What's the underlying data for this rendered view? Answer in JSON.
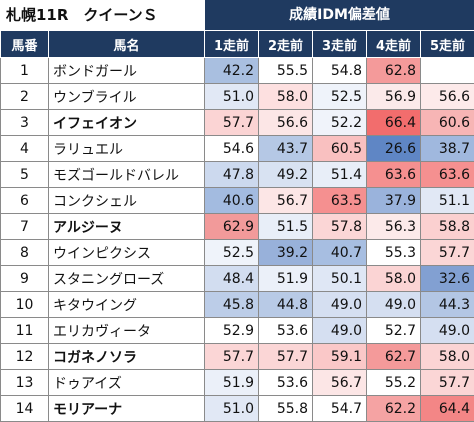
{
  "title": "札幌11R　クイーンＳ",
  "group_header": "成績IDM偏差値",
  "columns": [
    "馬番",
    "馬名",
    "1走前",
    "2走前",
    "3走前",
    "4走前",
    "5走前"
  ],
  "rows": [
    {
      "no": "1",
      "name": "ボンドガール",
      "bold": false,
      "values": [
        "42.2",
        "55.5",
        "54.8",
        "62.8",
        ""
      ],
      "colors": [
        "#a9bfe0",
        "#ffffff",
        "#ffffff",
        "#f49a9a",
        "#ffffff"
      ]
    },
    {
      "no": "2",
      "name": "ウンブライル",
      "bold": false,
      "values": [
        "51.0",
        "58.0",
        "52.5",
        "56.9",
        "56.6"
      ],
      "colors": [
        "#e1e8f5",
        "#fde0e0",
        "#eff3fa",
        "#fbeaea",
        "#fdeaea"
      ]
    },
    {
      "no": "3",
      "name": "イフェイオン",
      "bold": true,
      "values": [
        "57.7",
        "56.6",
        "52.2",
        "66.4",
        "60.6"
      ],
      "colors": [
        "#fbd4d4",
        "#fce6e6",
        "#f0f3fa",
        "#f26d6d",
        "#f7b5b5"
      ]
    },
    {
      "no": "4",
      "name": "ラリュエル",
      "bold": false,
      "values": [
        "54.6",
        "43.7",
        "60.5",
        "26.6",
        "38.7"
      ],
      "colors": [
        "#ffffff",
        "#b5c8e5",
        "#f9c0c0",
        "#5f86c5",
        "#a0b8de"
      ]
    },
    {
      "no": "5",
      "name": "モズゴールドバレル",
      "bold": false,
      "values": [
        "47.8",
        "49.2",
        "51.4",
        "63.6",
        "63.6"
      ],
      "colors": [
        "#ccd9ee",
        "#d8e2f2",
        "#e8eef8",
        "#f59090",
        "#f59090"
      ]
    },
    {
      "no": "6",
      "name": "コンクシェル",
      "bold": false,
      "values": [
        "40.6",
        "56.7",
        "63.5",
        "37.9",
        "51.1"
      ],
      "colors": [
        "#a3bbe0",
        "#fce6e6",
        "#f59090",
        "#9ab3dc",
        "#e1e8f5"
      ]
    },
    {
      "no": "7",
      "name": "アルジーヌ",
      "bold": true,
      "values": [
        "62.9",
        "51.5",
        "57.8",
        "56.3",
        "58.8"
      ],
      "colors": [
        "#f29a9a",
        "#e8eef8",
        "#fbd6d6",
        "#fceaea",
        "#fbd0d0"
      ]
    },
    {
      "no": "8",
      "name": "ウインピクシス",
      "bold": false,
      "values": [
        "52.5",
        "39.2",
        "40.7",
        "55.3",
        "57.7"
      ],
      "colors": [
        "#eff3fa",
        "#98b1da",
        "#a7bee1",
        "#ffffff",
        "#fbd6d6"
      ]
    },
    {
      "no": "9",
      "name": "スタニングローズ",
      "bold": false,
      "values": [
        "48.4",
        "51.9",
        "50.1",
        "58.0",
        "32.6"
      ],
      "colors": [
        "#d2ddf0",
        "#ebf0f9",
        "#dfe7f5",
        "#fbd4d4",
        "#82a0d2"
      ]
    },
    {
      "no": "10",
      "name": "キタウイング",
      "bold": false,
      "values": [
        "45.8",
        "44.8",
        "49.0",
        "49.0",
        "44.3"
      ],
      "colors": [
        "#bccde8",
        "#b8cae6",
        "#d5dff1",
        "#d5dff1",
        "#b3c6e4"
      ]
    },
    {
      "no": "11",
      "name": "エリカヴィータ",
      "bold": false,
      "values": [
        "52.9",
        "53.6",
        "49.0",
        "52.7",
        "49.0"
      ],
      "colors": [
        "#ffffff",
        "#ffffff",
        "#d5dff1",
        "#ffffff",
        "#d5dff1"
      ]
    },
    {
      "no": "12",
      "name": "コガネノソラ",
      "bold": true,
      "values": [
        "57.7",
        "57.7",
        "59.1",
        "62.7",
        "58.0"
      ],
      "colors": [
        "#fbd6d6",
        "#fbd6d6",
        "#fac8c8",
        "#f49a9a",
        "#fbd4d4"
      ]
    },
    {
      "no": "13",
      "name": "ドゥアイズ",
      "bold": false,
      "values": [
        "51.9",
        "53.6",
        "56.7",
        "55.2",
        "57.7"
      ],
      "colors": [
        "#ebf0f9",
        "#ffffff",
        "#fce6e6",
        "#ffffff",
        "#fbd6d6"
      ]
    },
    {
      "no": "14",
      "name": "モリアーナ",
      "bold": true,
      "values": [
        "51.0",
        "55.8",
        "54.7",
        "62.2",
        "64.4"
      ],
      "colors": [
        "#e1e8f5",
        "#ffffff",
        "#ffffff",
        "#f5a3a3",
        "#f38686"
      ]
    }
  ]
}
